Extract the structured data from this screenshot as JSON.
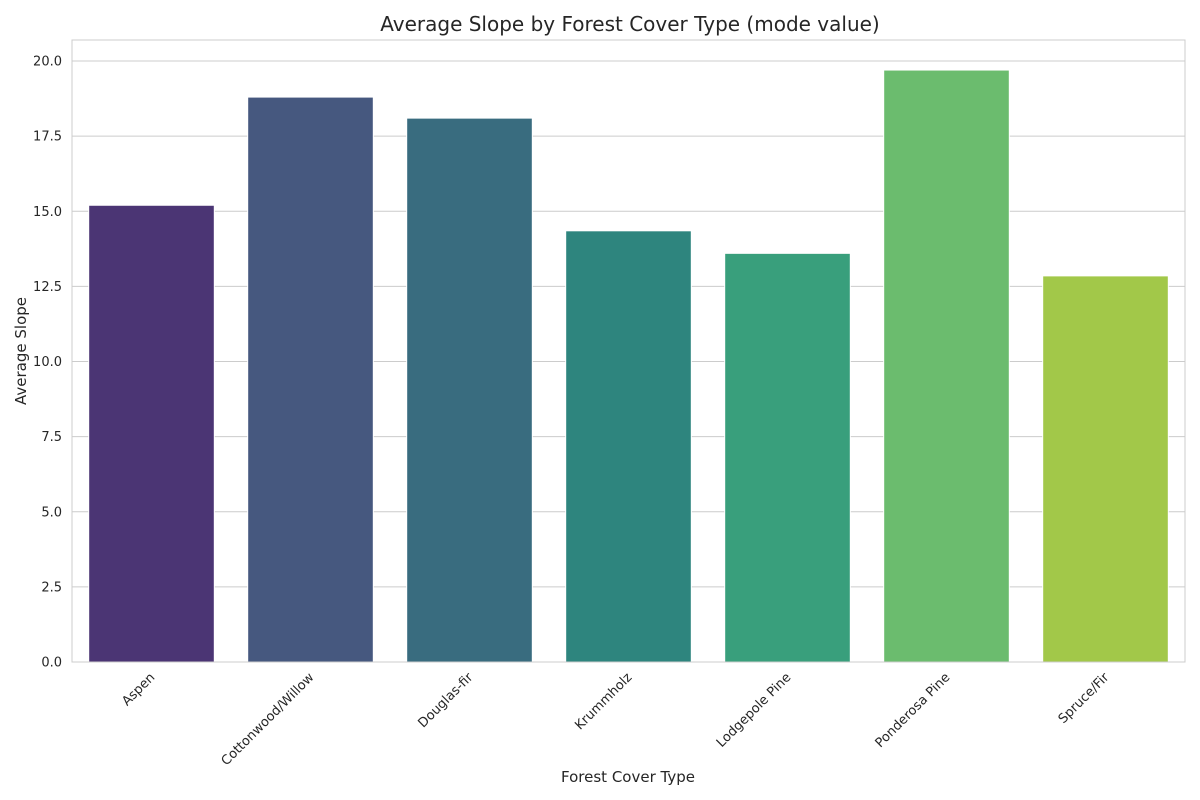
{
  "chart_data": {
    "type": "bar",
    "title": "Average Slope by Forest Cover Type (mode value)",
    "xlabel": "Forest Cover Type",
    "ylabel": "Average Slope",
    "categories": [
      "Aspen",
      "Cottonwood/Willow",
      "Douglas-fir",
      "Krummholz",
      "Lodgepole Pine",
      "Ponderosa Pine",
      "Spruce/Fir"
    ],
    "values": [
      15.2,
      18.8,
      18.1,
      14.35,
      13.6,
      19.7,
      12.85
    ],
    "colors": [
      "#4b3574",
      "#46587f",
      "#396c7f",
      "#2e857e",
      "#399f7c",
      "#6bbc6e",
      "#a2c849"
    ],
    "ylim": [
      0,
      20.7
    ],
    "yticks": [
      0.0,
      2.5,
      5.0,
      7.5,
      10.0,
      12.5,
      15.0,
      17.5,
      20.0
    ],
    "ytick_labels": [
      "0.0",
      "2.5",
      "5.0",
      "7.5",
      "10.0",
      "12.5",
      "15.0",
      "17.5",
      "20.0"
    ],
    "grid": "horizontal",
    "legend": "none"
  }
}
